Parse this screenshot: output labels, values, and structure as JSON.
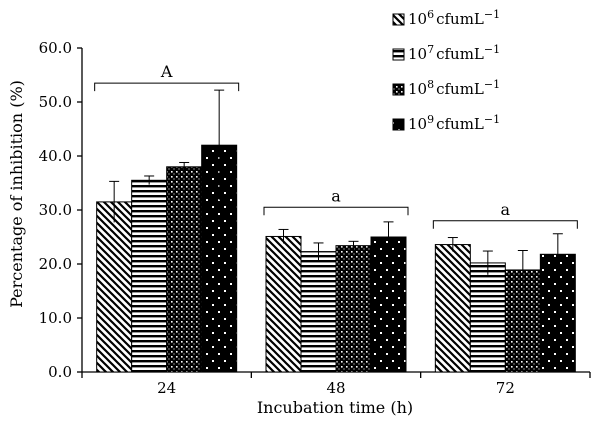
{
  "chart_data": {
    "type": "bar",
    "xlabel": "Incubation time (h)",
    "ylabel": "Percentage of inhibition (%)",
    "ylim": [
      0,
      60
    ],
    "yticks": [
      "0.0",
      "10.0",
      "20.0",
      "30.0",
      "40.0",
      "50.0",
      "60.0"
    ],
    "categories": [
      "24",
      "48",
      "72"
    ],
    "legend_placement": "top-right",
    "grid": false,
    "series": [
      {
        "name_base": "10",
        "name_exp": "6",
        "name_unit": "cfumL",
        "name_unit_exp": "−1",
        "pattern": "diagonal",
        "values": [
          31.5,
          25.1,
          23.6
        ],
        "errors": [
          3.8,
          1.3,
          1.3
        ]
      },
      {
        "name_base": "10",
        "name_exp": "7",
        "name_unit": "cfumL",
        "name_unit_exp": "−1",
        "pattern": "horizontal",
        "values": [
          35.5,
          22.3,
          20.2
        ],
        "errors": [
          0.8,
          1.6,
          2.2
        ]
      },
      {
        "name_base": "10",
        "name_exp": "8",
        "name_unit": "cfumL",
        "name_unit_exp": "−1",
        "pattern": "checker",
        "values": [
          38.0,
          23.4,
          18.9
        ],
        "errors": [
          0.8,
          0.8,
          3.6
        ]
      },
      {
        "name_base": "10",
        "name_exp": "9",
        "name_unit": "cfumL",
        "name_unit_exp": "−1",
        "pattern": "dots",
        "values": [
          42.0,
          25.0,
          21.8
        ],
        "errors": [
          10.2,
          2.8,
          3.8
        ]
      }
    ],
    "group_annotations": [
      {
        "category": "24",
        "label": "A",
        "level": 53.5
      },
      {
        "category": "48",
        "label": "a",
        "level": 30.5
      },
      {
        "category": "72",
        "label": "a",
        "level": 28.0
      }
    ]
  }
}
